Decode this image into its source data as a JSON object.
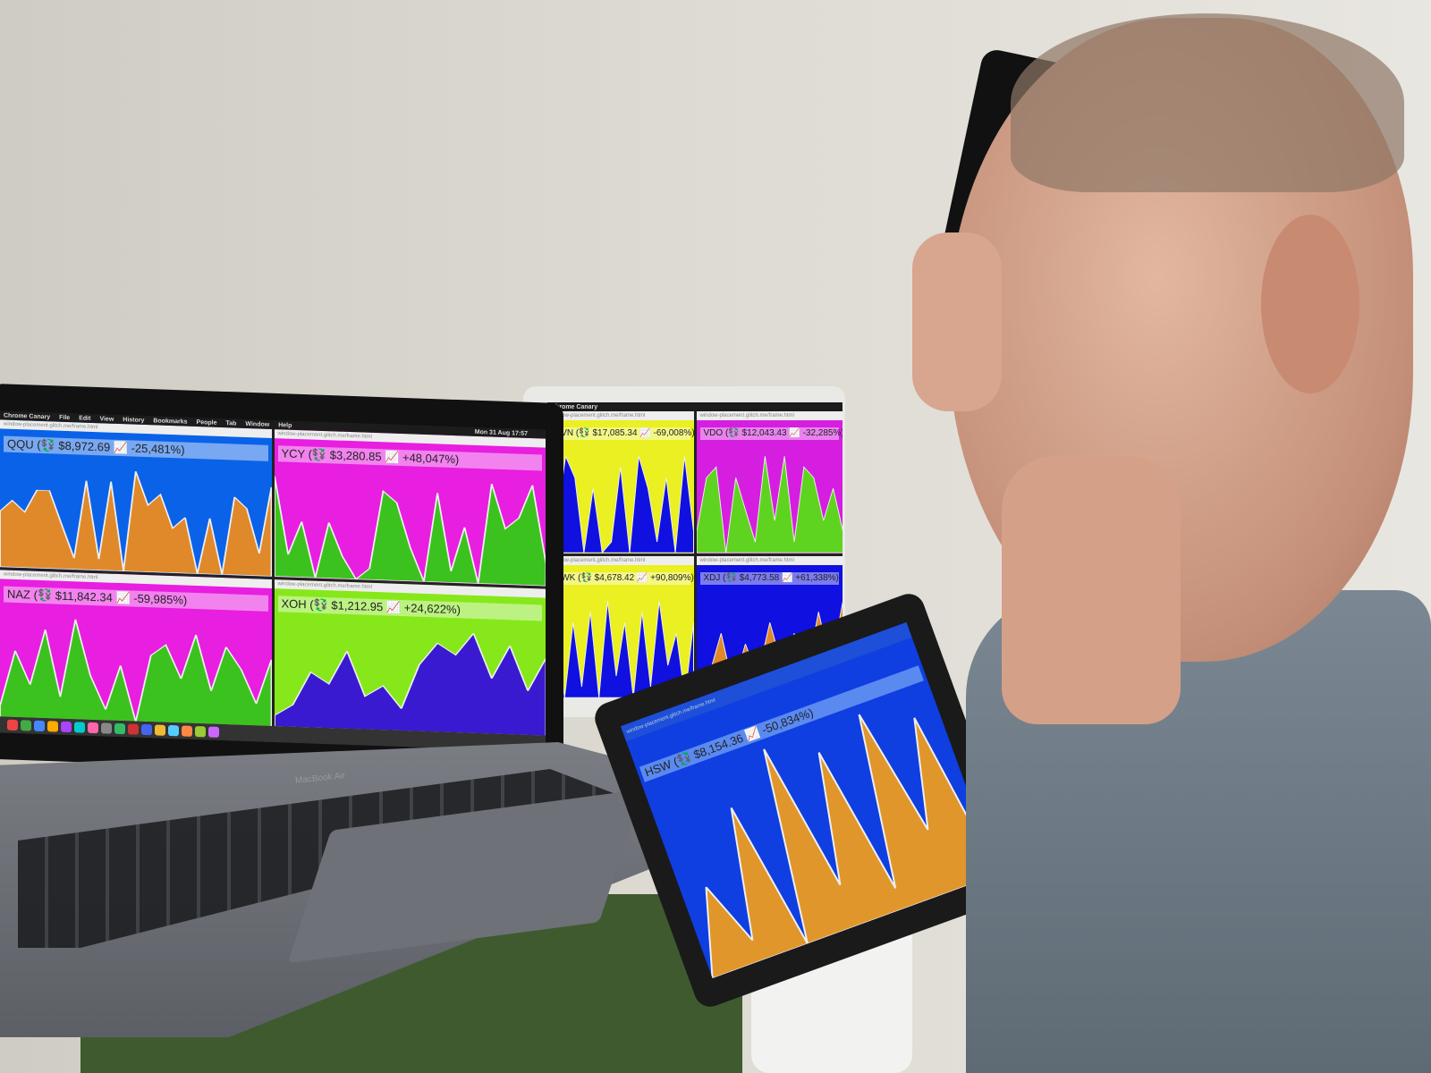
{
  "menubar": {
    "app": "Chrome Canary",
    "items": [
      "File",
      "Edit",
      "View",
      "History",
      "Bookmarks",
      "People",
      "Tab",
      "Window",
      "Help"
    ],
    "clock": "Mon 31 Aug 17:57"
  },
  "url": "window-placement.glitch.me/frame.html",
  "laptop": {
    "brand": "MacBook Air",
    "panels": [
      {
        "ticker": "QQU (💱 $8,972.69 📈 -25,481%)",
        "bg": "#0a62e8",
        "fill": "#e0892a",
        "values": [
          5,
          6,
          5,
          7,
          7,
          4,
          1,
          8,
          1,
          8,
          0,
          9,
          6,
          7,
          4,
          5,
          0,
          5,
          0,
          7,
          6,
          2,
          8
        ]
      },
      {
        "ticker": "YCY (💱 $3,280.85 📈 +48,047%)",
        "bg": "#e81ee0",
        "fill": "#3cc21e",
        "values": [
          9,
          2,
          5,
          0,
          5,
          2,
          0,
          1,
          8,
          7,
          3,
          0,
          8,
          1,
          5,
          0,
          9,
          5,
          6,
          9,
          2
        ]
      },
      {
        "ticker": "NAZ (💱 $11,842.34 📈 -59,985%)",
        "bg": "#e81ee0",
        "fill": "#3cc21e",
        "values": [
          1,
          6,
          3,
          8,
          2,
          9,
          4,
          1,
          5,
          0,
          6,
          7,
          4,
          8,
          3,
          7,
          5,
          2,
          6
        ]
      },
      {
        "ticker": "XOH (💱 $1,212.95 📈 +24,622%)",
        "bg": "#86e81a",
        "fill": "#3a1ad0",
        "values": [
          1,
          2,
          5,
          4,
          7,
          3,
          4,
          2,
          6,
          8,
          7,
          9,
          5,
          8,
          4,
          7
        ]
      }
    ]
  },
  "monitor": {
    "panels": [
      {
        "ticker": "HVN (💱 $17,085.34 📈 -69,008%)",
        "bg": "#eaf021",
        "fill": "#1010e0",
        "values": [
          9,
          3,
          9,
          7,
          0,
          6,
          0,
          1,
          8,
          0,
          9,
          6,
          1,
          7,
          0,
          9,
          2
        ]
      },
      {
        "ticker": "VDO (💱 $12,043.43 📈 -32,285%)",
        "bg": "#d51ee0",
        "fill": "#5fd420",
        "values": [
          2,
          7,
          8,
          0,
          7,
          4,
          1,
          9,
          3,
          9,
          1,
          8,
          7,
          3,
          6,
          2
        ]
      },
      {
        "ticker": "DWK (💱 $4,678.42 📈 +90,809%)",
        "bg": "#eaf021",
        "fill": "#1010e0",
        "values": [
          2,
          6,
          0,
          7,
          1,
          8,
          0,
          9,
          2,
          7,
          0,
          8,
          1,
          9,
          3,
          6,
          0,
          7
        ]
      },
      {
        "ticker": "XDJ (💱 $4,773.58 📈 +61,338%)",
        "bg": "#1010e0",
        "fill": "#e0892a",
        "values": [
          0,
          2,
          6,
          1,
          5,
          2,
          7,
          3,
          6,
          2,
          8,
          3,
          9
        ]
      }
    ]
  },
  "ipad": {
    "ticker": "HSW (💱 $8,154.36 📈 -50,834%)",
    "bg": "#0f3fe0",
    "fill": "#e0962a",
    "values": [
      0,
      4,
      1,
      7,
      0,
      9,
      2,
      8,
      1,
      9,
      3,
      8,
      0
    ]
  }
}
